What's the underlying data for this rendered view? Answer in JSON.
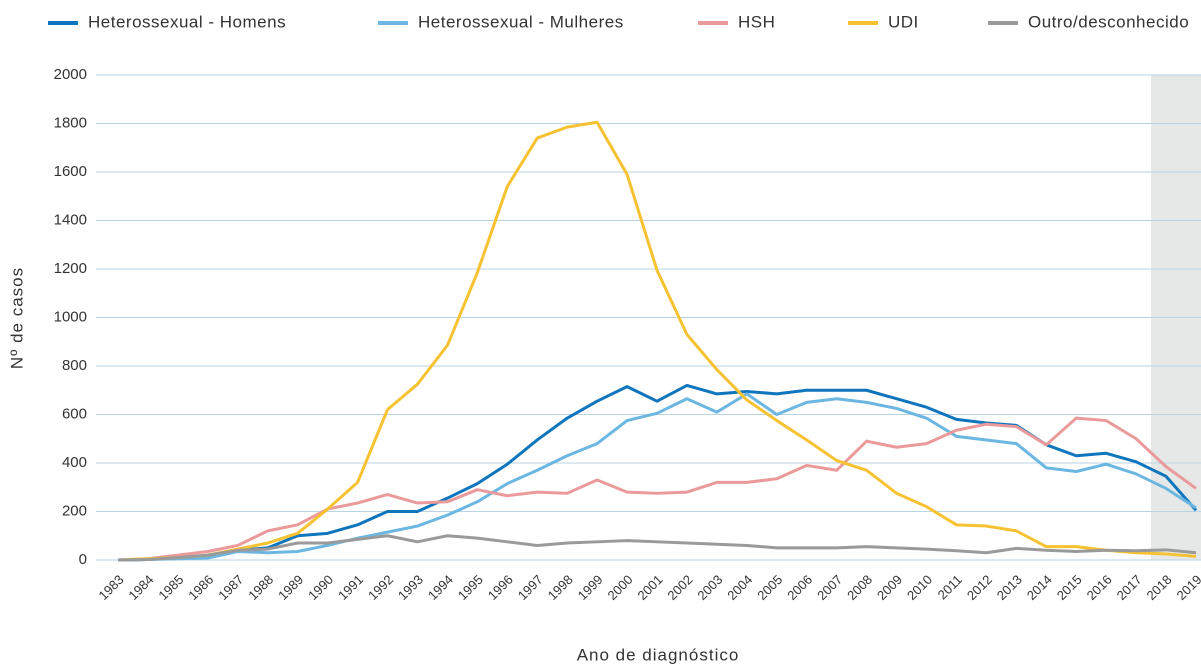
{
  "chart_data": {
    "type": "line",
    "categories": [
      "1983",
      "1984",
      "1985",
      "1986",
      "1987",
      "1988",
      "1989",
      "1990",
      "1991",
      "1992",
      "1993",
      "1994",
      "1995",
      "1996",
      "1997",
      "1998",
      "1999",
      "2000",
      "2001",
      "2002",
      "2003",
      "2004",
      "2005",
      "2006",
      "2007",
      "2008",
      "2009",
      "2010",
      "2011",
      "2012",
      "2013",
      "2014",
      "2015",
      "2016",
      "2017",
      "2018",
      "2019"
    ],
    "series": [
      {
        "name": "Heterossexual - Homens",
        "color": "#0f75bc",
        "values": [
          0,
          2,
          8,
          15,
          40,
          50,
          100,
          110,
          145,
          200,
          200,
          255,
          315,
          395,
          495,
          585,
          655,
          715,
          655,
          720,
          685,
          695,
          685,
          700,
          700,
          700,
          665,
          630,
          580,
          565,
          555,
          475,
          430,
          440,
          405,
          345,
          205
        ]
      },
      {
        "name": "Heterossexual - Mulheres",
        "color": "#6cb6e2",
        "values": [
          0,
          2,
          5,
          8,
          35,
          30,
          35,
          60,
          90,
          115,
          140,
          185,
          240,
          315,
          370,
          430,
          480,
          575,
          605,
          665,
          610,
          685,
          600,
          650,
          665,
          650,
          625,
          585,
          510,
          495,
          480,
          380,
          365,
          395,
          355,
          295,
          215
        ]
      },
      {
        "name": "HSH",
        "color": "#ea9a9b",
        "values": [
          0,
          5,
          20,
          35,
          60,
          120,
          145,
          210,
          235,
          270,
          235,
          240,
          290,
          265,
          280,
          275,
          330,
          280,
          275,
          280,
          320,
          320,
          335,
          390,
          370,
          490,
          465,
          480,
          535,
          560,
          550,
          475,
          585,
          575,
          500,
          385,
          295
        ]
      },
      {
        "name": "UDI",
        "color": "#f6c231",
        "values": [
          0,
          5,
          10,
          20,
          45,
          70,
          110,
          210,
          320,
          620,
          725,
          885,
          1185,
          1540,
          1740,
          1785,
          1805,
          1590,
          1195,
          930,
          785,
          660,
          575,
          495,
          410,
          370,
          275,
          220,
          145,
          140,
          120,
          55,
          55,
          40,
          30,
          25,
          15
        ]
      },
      {
        "name": "Outro/desconhecido",
        "color": "#9a9a9a",
        "values": [
          0,
          2,
          10,
          20,
          40,
          45,
          70,
          70,
          85,
          100,
          75,
          100,
          90,
          75,
          60,
          70,
          75,
          80,
          75,
          70,
          65,
          60,
          50,
          50,
          50,
          55,
          50,
          45,
          38,
          30,
          48,
          40,
          35,
          40,
          38,
          42,
          30
        ]
      }
    ],
    "xlabel": "Ano de diagnóstico",
    "ylabel": "Nº de casos",
    "ylim": [
      0,
      2000
    ],
    "yticks": [
      0,
      200,
      400,
      600,
      800,
      1000,
      1200,
      1400,
      1600,
      1800,
      2000
    ],
    "grid": true,
    "legend": "top"
  }
}
